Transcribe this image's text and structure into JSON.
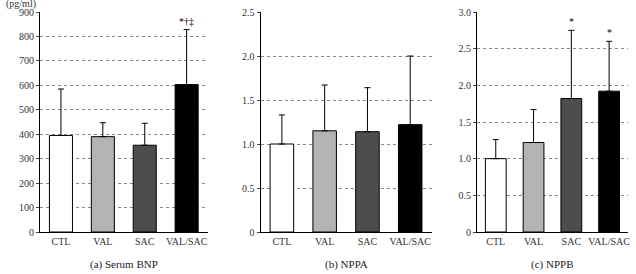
{
  "chart_data": [
    {
      "type": "bar",
      "title": "(a) Serum BNP",
      "y_label": "(pg/ml)",
      "categories": [
        "CTL",
        "VAL",
        "SAC",
        "VAL/SAC"
      ],
      "values": [
        395,
        390,
        355,
        603
      ],
      "errors": [
        190,
        57,
        90,
        225
      ],
      "colors": [
        "#ffffff",
        "#b3b3b3",
        "#4d4d4d",
        "#000000"
      ],
      "ylim": [
        0,
        900
      ],
      "yticks": [
        0,
        100,
        200,
        300,
        400,
        500,
        600,
        700,
        800,
        900
      ],
      "grid": true,
      "annotations": [
        {
          "category": "VAL/SAC",
          "text": "*†‡"
        }
      ]
    },
    {
      "type": "bar",
      "title": "(b) NPPA",
      "categories": [
        "CTL",
        "VAL",
        "SAC",
        "VAL/SAC"
      ],
      "values": [
        1.0,
        1.15,
        1.14,
        1.22
      ],
      "errors": [
        0.33,
        0.52,
        0.5,
        0.78
      ],
      "colors": [
        "#ffffff",
        "#b3b3b3",
        "#4d4d4d",
        "#000000"
      ],
      "ylim": [
        0,
        2.5
      ],
      "yticks": [
        0,
        0.5,
        {
          "value": 1,
          "label": "1.0"
        },
        1.5,
        {
          "value": 2,
          "label": "2.0"
        },
        2.5
      ],
      "grid": true,
      "annotations": []
    },
    {
      "type": "bar",
      "title": "(c) NPPB",
      "categories": [
        "CTL",
        "VAL",
        "SAC",
        "VAL/SAC"
      ],
      "values": [
        1.0,
        1.22,
        1.82,
        1.92
      ],
      "errors": [
        0.26,
        0.45,
        0.93,
        0.68
      ],
      "colors": [
        "#ffffff",
        "#b3b3b3",
        "#4d4d4d",
        "#000000"
      ],
      "ylim": [
        0,
        3
      ],
      "yticks": [
        0,
        0.5,
        {
          "value": 1,
          "label": "1.0"
        },
        1.5,
        {
          "value": 2,
          "label": "2.0"
        },
        2.5,
        {
          "value": 3,
          "label": "3.0"
        }
      ],
      "grid": true,
      "annotations": [
        {
          "category": "SAC",
          "text": "*"
        },
        {
          "category": "VAL/SAC",
          "text": "*"
        }
      ]
    }
  ]
}
